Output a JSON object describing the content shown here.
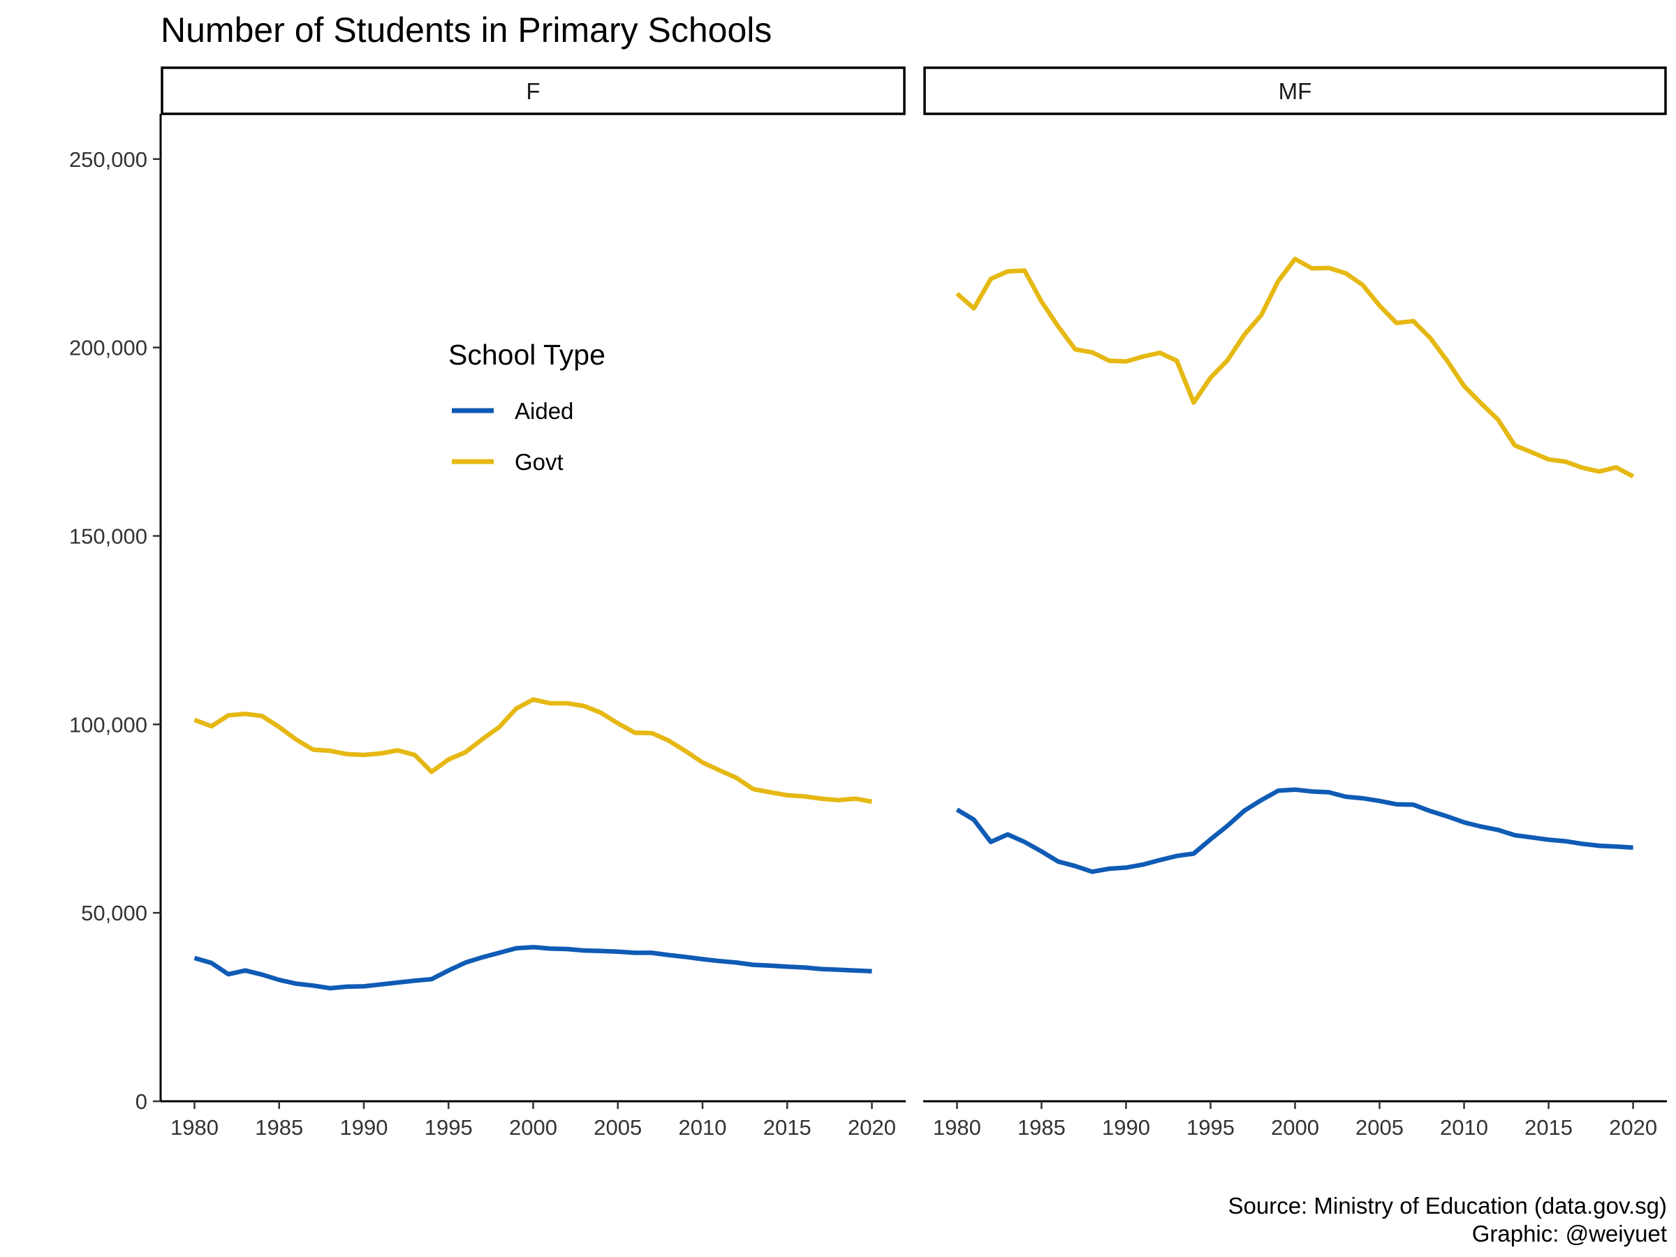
{
  "chart_data": {
    "type": "line",
    "title": "Number of Students in Primary Schools",
    "caption": [
      "Source: Ministry of Education (data.gov.sg)",
      "Graphic: @weiyuet"
    ],
    "legend": {
      "title": "School Type",
      "placement": "inside-left-panel"
    },
    "x": [
      1980,
      1981,
      1982,
      1983,
      1984,
      1985,
      1986,
      1987,
      1988,
      1989,
      1990,
      1991,
      1992,
      1993,
      1994,
      1995,
      1996,
      1997,
      1998,
      1999,
      2000,
      2001,
      2002,
      2003,
      2004,
      2005,
      2006,
      2007,
      2008,
      2009,
      2010,
      2011,
      2012,
      2013,
      2014,
      2015,
      2016,
      2017,
      2018,
      2019,
      2020
    ],
    "xlim": [
      1978,
      2022
    ],
    "xticks": [
      "1980",
      "1985",
      "1990",
      "1995",
      "2000",
      "2005",
      "2010",
      "2015",
      "2020"
    ],
    "ylim": [
      0,
      262000
    ],
    "yticks": [
      "0",
      "50,000",
      "100,000",
      "150,000",
      "200,000",
      "250,000"
    ],
    "grid": false,
    "facets": [
      {
        "label": "F",
        "series": [
          {
            "name": "Aided",
            "color": "#0f5bb5",
            "values": [
              38000,
              36700,
              33700,
              34700,
              33600,
              32200,
              31200,
              30700,
              30000,
              30400,
              30500,
              31000,
              31500,
              32000,
              32400,
              34700,
              36800,
              38200,
              39400,
              40600,
              40900,
              40500,
              40400,
              40000,
              39900,
              39700,
              39400,
              39400,
              38800,
              38300,
              37700,
              37200,
              36800,
              36200,
              36000,
              35700,
              35500,
              35100,
              34900,
              34700,
              34500
            ]
          },
          {
            "name": "Govt",
            "color": "#e6b813",
            "values": [
              101200,
              99500,
              102400,
              102800,
              102200,
              99300,
              96000,
              93300,
              93000,
              92100,
              91900,
              92300,
              93100,
              91900,
              87400,
              90700,
              92600,
              96100,
              99300,
              104200,
              106600,
              105600,
              105600,
              104900,
              103100,
              100300,
              97800,
              97700,
              95700,
              92900,
              89900,
              87800,
              85800,
              82800,
              82000,
              81200,
              80900,
              80300,
              79900,
              80300,
              79500
            ]
          }
        ]
      },
      {
        "label": "MF",
        "series": [
          {
            "name": "Aided",
            "color": "#0f5bb5",
            "values": [
              77400,
              74700,
              68800,
              70800,
              68800,
              66300,
              63600,
              62400,
              60900,
              61700,
              62000,
              62800,
              64000,
              65100,
              65700,
              69500,
              73100,
              77100,
              79900,
              82400,
              82700,
              82200,
              82000,
              80800,
              80400,
              79700,
              78800,
              78700,
              77000,
              75600,
              74000,
              72900,
              72000,
              70600,
              70000,
              69400,
              69000,
              68300,
              67800,
              67600,
              67300
            ]
          },
          {
            "name": "Govt",
            "color": "#e6b813",
            "values": [
              214300,
              210400,
              218200,
              220200,
              220400,
              212200,
              205500,
              199500,
              198700,
              196500,
              196300,
              197600,
              198600,
              196500,
              185400,
              192000,
              196600,
              203400,
              208600,
              217600,
              223500,
              221000,
              221100,
              219700,
              216600,
              211100,
              206500,
              207000,
              202500,
              196500,
              189800,
              185200,
              180900,
              174000,
              172200,
              170300,
              169700,
              168100,
              167100,
              168200,
              165800
            ]
          }
        ]
      }
    ]
  }
}
